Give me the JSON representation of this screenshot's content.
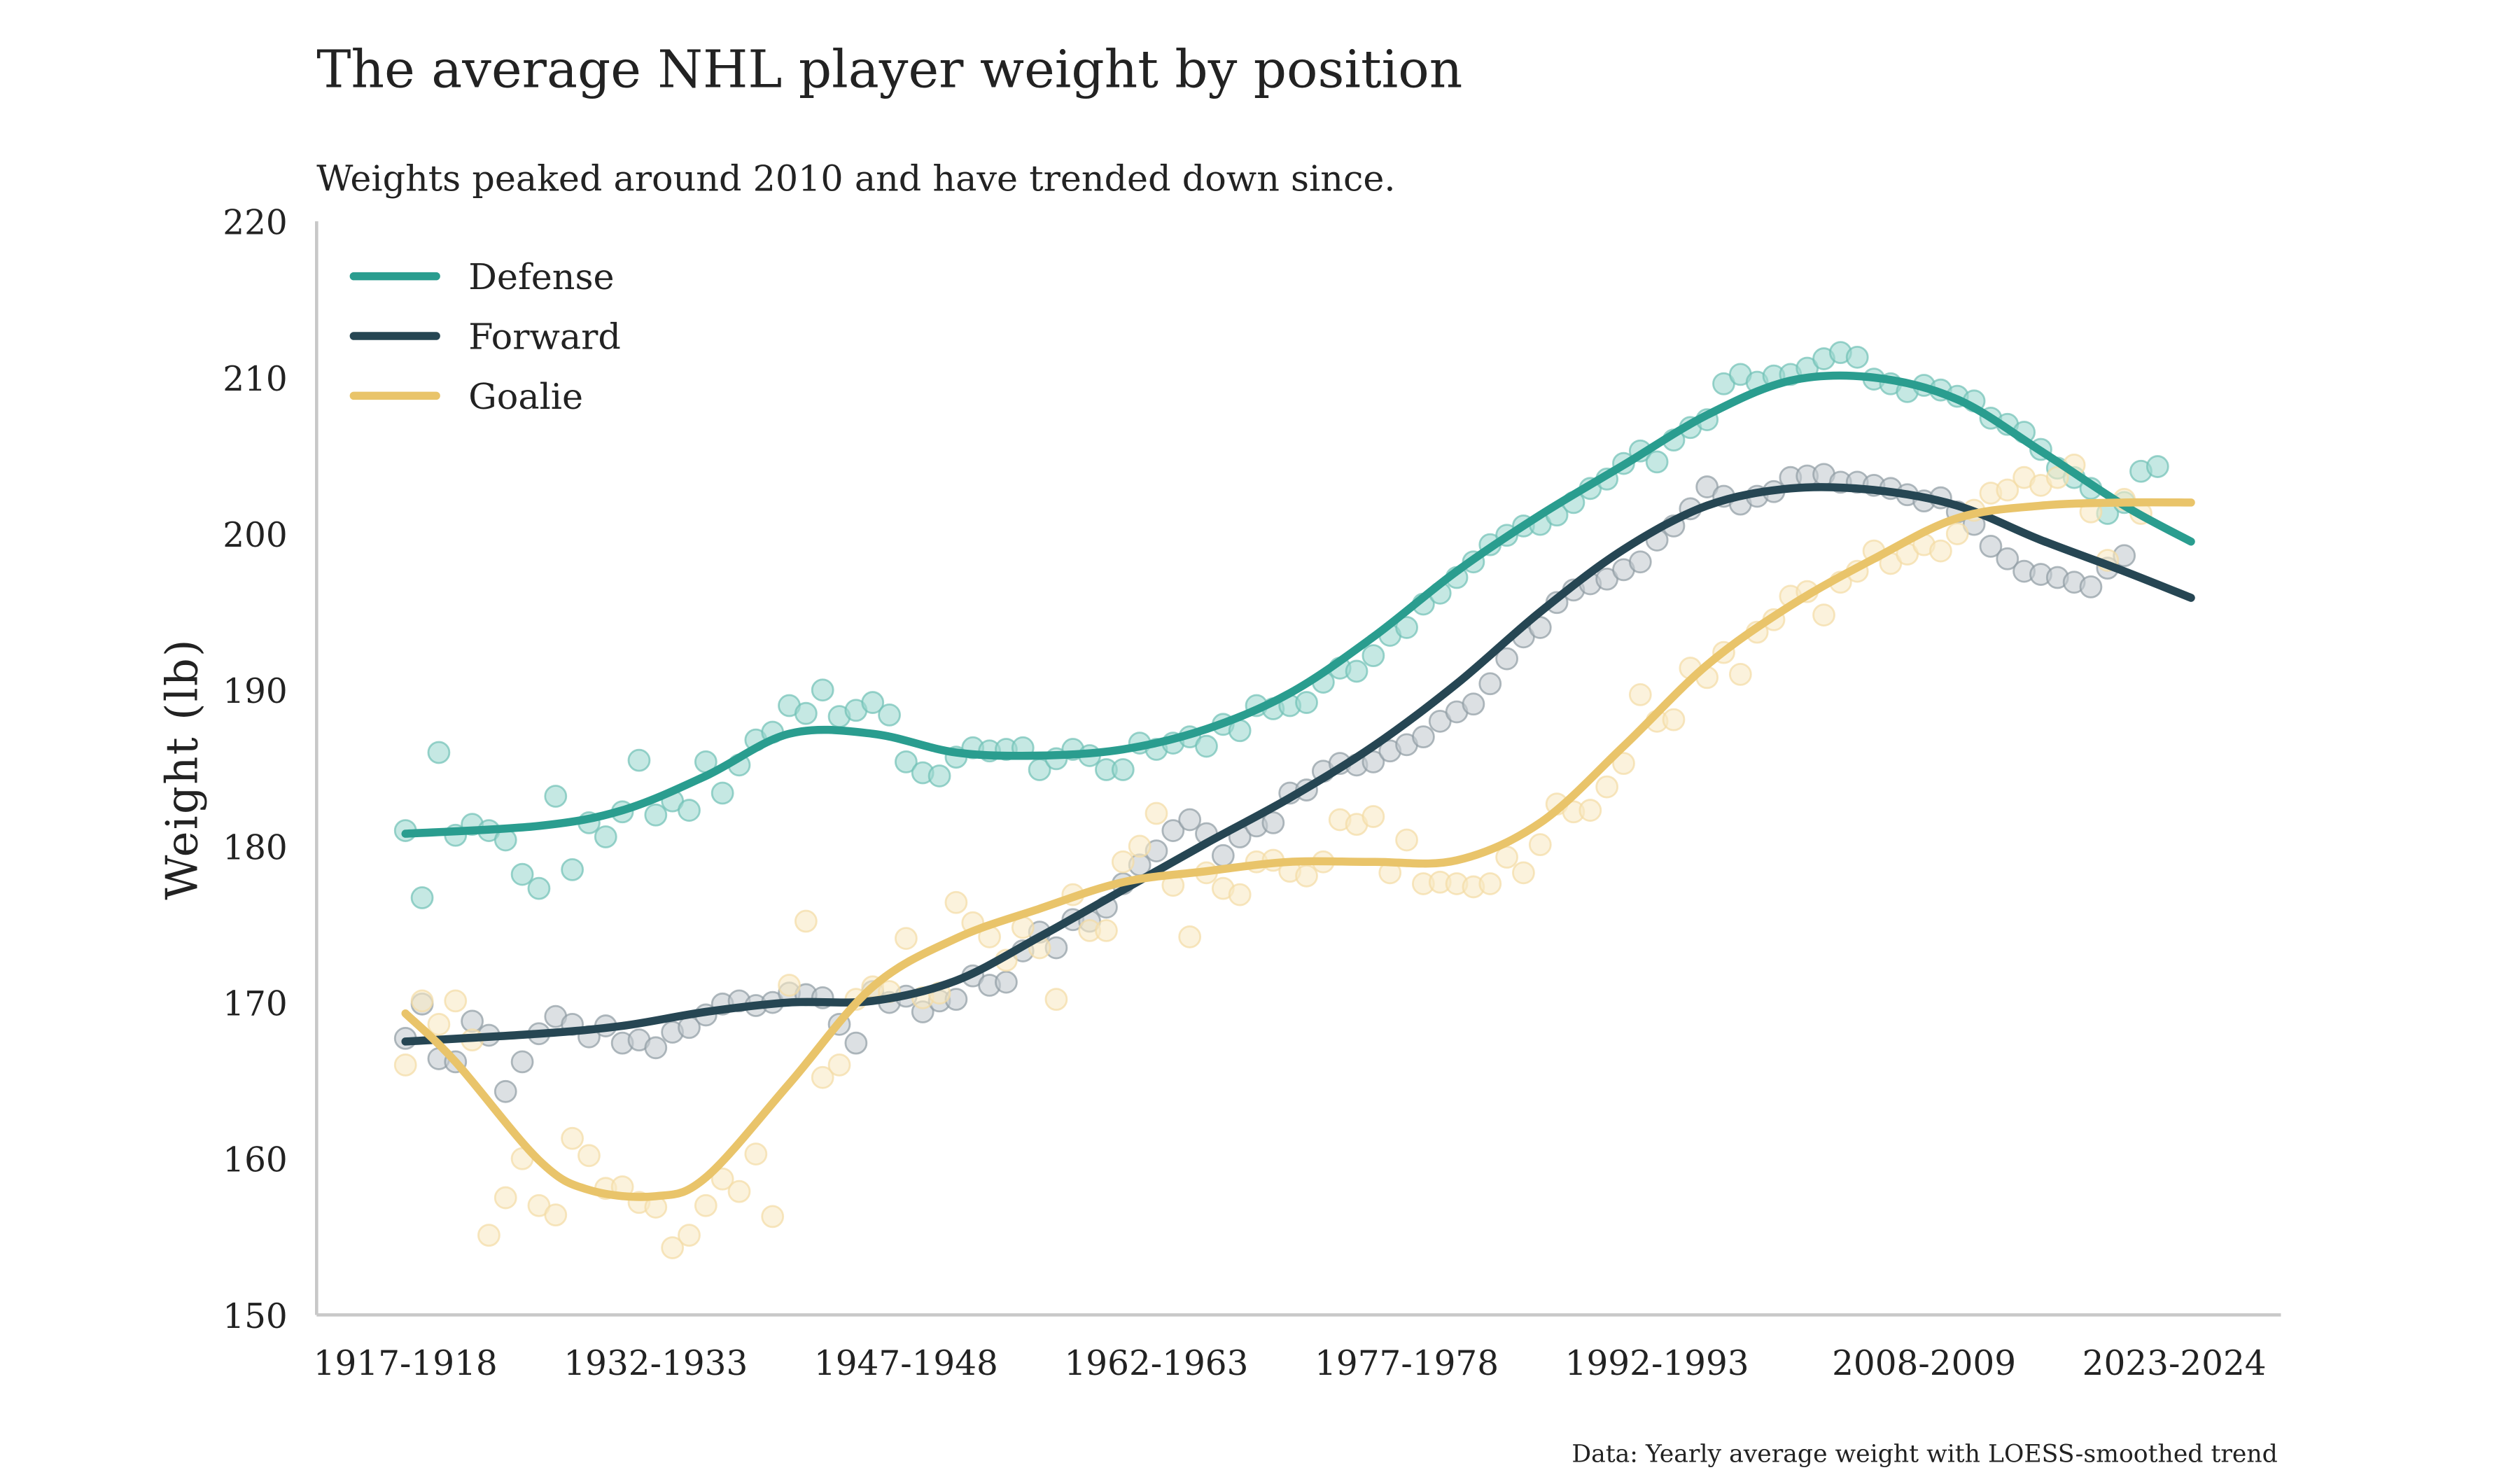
{
  "chart_data": {
    "type": "scatter",
    "title": "The average NHL player weight by position",
    "subtitle": "Weights peaked around 2010 and have trended down since.",
    "ylabel": "Weight (lb)",
    "xlabel": "",
    "caption": "Data: Yearly average weight with LOESS-smoothed trend",
    "ylim": [
      150,
      220
    ],
    "yticks": [
      150,
      160,
      170,
      180,
      190,
      200,
      210,
      220
    ],
    "xticks": [
      {
        "year": 1917,
        "label": "1917-1918"
      },
      {
        "year": 1932,
        "label": "1932-1933"
      },
      {
        "year": 1947,
        "label": "1947-1948"
      },
      {
        "year": 1962,
        "label": "1962-1963"
      },
      {
        "year": 1977,
        "label": "1977-1978"
      },
      {
        "year": 1992,
        "label": "1992-1993"
      },
      {
        "year": 2008,
        "label": "2008-2009"
      },
      {
        "year": 2023,
        "label": "2023-2024"
      }
    ],
    "xlim": [
      1917,
      2024
    ],
    "grid": false,
    "legend_position": "top-left",
    "x_start_year": 1917,
    "series": [
      {
        "name": "Defense",
        "color": "#2a9d8f",
        "points": [
          181.0,
          176.7,
          186.0,
          180.7,
          181.4,
          181.0,
          180.4,
          178.2,
          177.3,
          183.2,
          178.5,
          181.5,
          180.6,
          182.2,
          185.5,
          182.0,
          182.9,
          182.3,
          185.4,
          183.4,
          185.2,
          186.8,
          187.3,
          189.0,
          188.5,
          190.0,
          188.3,
          188.7,
          189.2,
          188.4,
          185.4,
          184.7,
          184.5,
          185.7,
          186.3,
          186.1,
          186.2,
          186.3,
          184.9,
          185.6,
          186.2,
          185.8,
          184.9,
          184.9,
          186.6,
          186.2,
          186.6,
          187.0,
          186.4,
          187.8,
          187.4,
          189.0,
          188.8,
          189.0,
          189.2,
          190.5,
          191.4,
          191.2,
          192.2,
          193.5,
          194.0,
          195.5,
          196.2,
          197.2,
          198.2,
          199.3,
          199.9,
          200.5,
          200.6,
          201.2,
          202.0,
          202.9,
          203.5,
          204.5,
          205.3,
          204.6,
          206.0,
          206.8,
          207.3,
          209.6,
          210.2,
          209.7,
          210.1,
          210.2,
          210.6,
          211.2,
          211.6,
          211.3,
          209.9,
          209.6,
          209.1,
          209.5,
          209.2,
          208.8,
          208.5,
          207.4,
          207.0,
          206.5,
          205.4,
          204.2,
          203.6,
          202.9,
          201.3,
          202.0,
          204.0,
          204.3
        ],
        "trend": [
          [
            1917,
            180.8
          ],
          [
            1925,
            181.3
          ],
          [
            1930,
            182.3
          ],
          [
            1935,
            184.5
          ],
          [
            1940,
            187.2
          ],
          [
            1945,
            187.2
          ],
          [
            1950,
            186.0
          ],
          [
            1955,
            185.8
          ],
          [
            1960,
            186.2
          ],
          [
            1965,
            187.5
          ],
          [
            1970,
            189.8
          ],
          [
            1975,
            193.4
          ],
          [
            1980,
            197.6
          ],
          [
            1985,
            201.2
          ],
          [
            1990,
            204.4
          ],
          [
            1995,
            207.6
          ],
          [
            2000,
            209.8
          ],
          [
            2005,
            210.0
          ],
          [
            2010,
            208.6
          ],
          [
            2015,
            205.3
          ],
          [
            2020,
            201.8
          ],
          [
            2024,
            199.5
          ]
        ]
      },
      {
        "name": "Forward",
        "color": "#264653",
        "points": [
          167.7,
          169.9,
          166.4,
          166.2,
          168.8,
          167.9,
          164.3,
          166.2,
          168.0,
          169.1,
          168.6,
          167.8,
          168.5,
          167.4,
          167.6,
          167.1,
          168.1,
          168.4,
          169.2,
          169.9,
          170.1,
          169.8,
          170.0,
          170.6,
          170.5,
          170.3,
          168.6,
          167.4,
          170.7,
          170.0,
          170.4,
          169.4,
          170.1,
          170.2,
          171.7,
          171.1,
          171.3,
          173.3,
          174.5,
          173.5,
          175.3,
          175.2,
          176.1,
          177.6,
          178.8,
          179.7,
          181.0,
          181.7,
          180.8,
          179.4,
          180.6,
          181.3,
          181.5,
          183.4,
          183.6,
          184.8,
          185.3,
          185.2,
          185.4,
          186.1,
          186.5,
          187.0,
          188.0,
          188.6,
          189.1,
          190.4,
          192.0,
          193.4,
          194.0,
          195.6,
          196.4,
          196.8,
          197.1,
          197.7,
          198.2,
          199.6,
          200.5,
          201.6,
          203.0,
          202.4,
          201.9,
          202.4,
          202.7,
          203.6,
          203.7,
          203.8,
          203.3,
          203.3,
          203.1,
          202.9,
          202.5,
          202.1,
          202.3,
          201.4,
          200.6,
          199.2,
          198.4,
          197.6,
          197.4,
          197.2,
          196.9,
          196.6,
          197.8,
          198.6
        ],
        "trend": [
          [
            1917,
            167.5
          ],
          [
            1925,
            168.0
          ],
          [
            1930,
            168.5
          ],
          [
            1935,
            169.4
          ],
          [
            1940,
            170.0
          ],
          [
            1945,
            170.1
          ],
          [
            1950,
            171.4
          ],
          [
            1955,
            174.2
          ],
          [
            1960,
            177.2
          ],
          [
            1965,
            180.2
          ],
          [
            1970,
            183.1
          ],
          [
            1975,
            186.4
          ],
          [
            1980,
            190.4
          ],
          [
            1985,
            195.0
          ],
          [
            1990,
            199.0
          ],
          [
            1995,
            201.8
          ],
          [
            2000,
            202.9
          ],
          [
            2005,
            202.8
          ],
          [
            2010,
            201.8
          ],
          [
            2015,
            199.6
          ],
          [
            2020,
            197.6
          ],
          [
            2024,
            195.9
          ]
        ]
      },
      {
        "name": "Goalie",
        "color": "#e9c46a",
        "points": [
          166.0,
          170.1,
          168.6,
          170.1,
          167.6,
          155.1,
          157.5,
          160.0,
          157.0,
          156.4,
          161.3,
          160.2,
          158.1,
          158.2,
          157.2,
          156.9,
          154.3,
          155.1,
          157.0,
          158.7,
          157.9,
          160.3,
          156.3,
          171.1,
          175.2,
          165.2,
          166.0,
          170.2,
          171.0,
          170.7,
          174.1,
          170.3,
          170.6,
          176.4,
          175.1,
          174.2,
          172.7,
          174.8,
          173.5,
          170.2,
          176.9,
          174.6,
          174.6,
          179.0,
          180.0,
          182.1,
          177.5,
          174.2,
          178.3,
          177.3,
          176.9,
          179.0,
          179.1,
          178.4,
          178.1,
          179.0,
          181.7,
          181.4,
          181.9,
          178.3,
          180.4,
          177.6,
          177.7,
          177.6,
          177.4,
          177.6,
          179.3,
          178.3,
          180.1,
          182.7,
          182.2,
          182.3,
          183.8,
          185.3,
          189.7,
          188.0,
          188.1,
          191.4,
          190.8,
          192.4,
          191.0,
          193.7,
          194.5,
          196.0,
          196.3,
          194.8,
          196.9,
          197.6,
          198.9,
          198.1,
          198.7,
          199.3,
          198.9,
          200.0,
          201.5,
          202.6,
          202.8,
          203.6,
          203.1,
          203.6,
          204.4,
          201.4,
          198.3,
          202.2,
          201.3
        ],
        "trend": [
          [
            1917,
            169.3
          ],
          [
            1920,
            166.2
          ],
          [
            1925,
            159.9
          ],
          [
            1928,
            158.0
          ],
          [
            1932,
            157.6
          ],
          [
            1935,
            158.8
          ],
          [
            1940,
            164.8
          ],
          [
            1945,
            171.0
          ],
          [
            1950,
            174.1
          ],
          [
            1955,
            176.0
          ],
          [
            1960,
            177.7
          ],
          [
            1965,
            178.4
          ],
          [
            1970,
            179.0
          ],
          [
            1975,
            179.0
          ],
          [
            1980,
            179.1
          ],
          [
            1985,
            181.5
          ],
          [
            1990,
            186.4
          ],
          [
            1995,
            191.6
          ],
          [
            2000,
            195.4
          ],
          [
            2005,
            198.4
          ],
          [
            2010,
            201.0
          ],
          [
            2015,
            201.8
          ],
          [
            2020,
            202.0
          ],
          [
            2024,
            202.0
          ]
        ]
      }
    ]
  }
}
